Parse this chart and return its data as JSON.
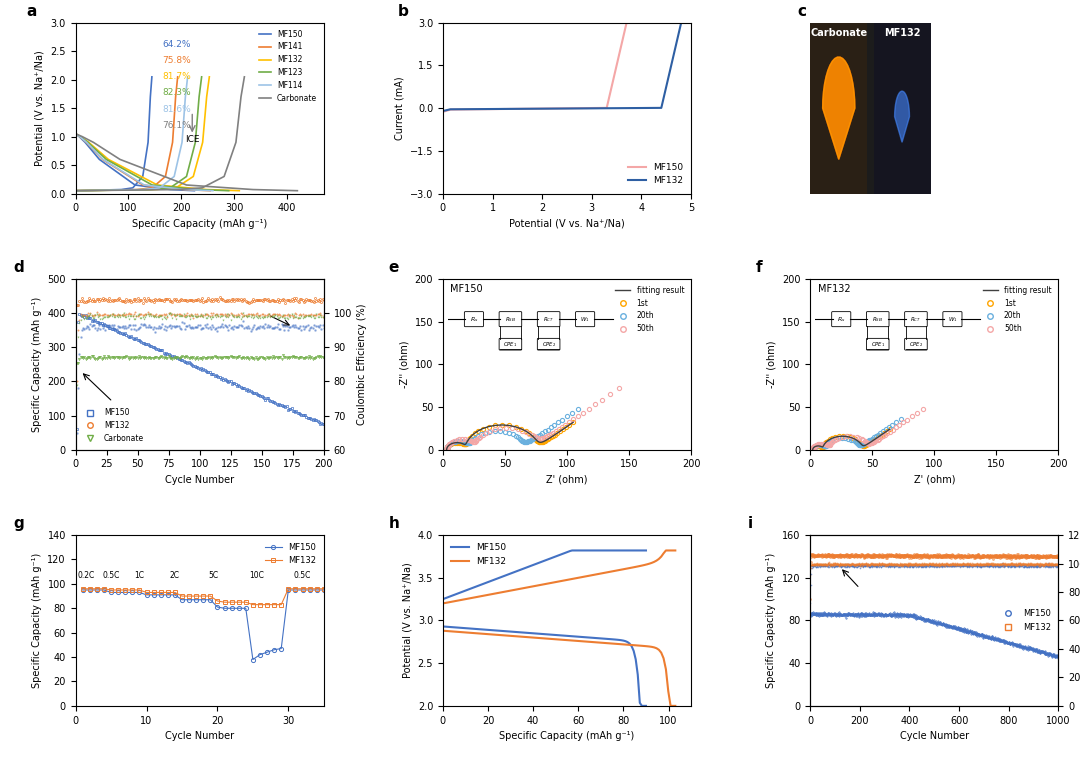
{
  "panel_a": {
    "ice_labels": [
      "64.2%",
      "75.8%",
      "81.7%",
      "82.3%",
      "81.6%",
      "76.1%"
    ],
    "ice_colors": [
      "#4472c4",
      "#ed7d31",
      "#ffc000",
      "#70ad47",
      "#9dc3e6",
      "#808080"
    ],
    "legend_labels": [
      "MF150",
      "MF141",
      "MF132",
      "MF123",
      "MF114",
      "Carbonate"
    ],
    "legend_colors": [
      "#4472c4",
      "#ed7d31",
      "#ffc000",
      "#70ad47",
      "#9dc3e6",
      "#808080"
    ],
    "xlabel": "Specific Capacity (mAh g⁻¹)",
    "ylabel": "Potential (V vs. Na⁺/Na)",
    "xlim": [
      0,
      470
    ],
    "ylim": [
      0,
      3.0
    ],
    "curves": [
      {
        "cap": 225,
        "ice": 0.642,
        "color": "#4472c4"
      },
      {
        "cap": 255,
        "ice": 0.758,
        "color": "#ed7d31"
      },
      {
        "cap": 310,
        "ice": 0.817,
        "color": "#ffc000"
      },
      {
        "cap": 290,
        "ice": 0.823,
        "color": "#70ad47"
      },
      {
        "cap": 260,
        "ice": 0.816,
        "color": "#9dc3e6"
      },
      {
        "cap": 420,
        "ice": 0.761,
        "color": "#808080"
      }
    ]
  },
  "panel_b": {
    "xlabel": "Potential (V vs. Na⁺/Na)",
    "ylabel": "Current (mA)",
    "xlim": [
      0,
      5
    ],
    "ylim": [
      -3.0,
      3.0
    ],
    "legend_labels": [
      "MF150",
      "MF132"
    ],
    "legend_colors": [
      "#f4a7a7",
      "#2e5fa3"
    ]
  },
  "panel_c": {
    "label_left": "Carbonate",
    "label_right": "MF132"
  },
  "panel_d": {
    "xlabel": "Cycle Number",
    "ylabel_left": "Specific Capacity (mAh g⁻¹)",
    "ylabel_right": "Coulombic Efficiency (%)",
    "xlim": [
      0,
      200
    ],
    "ylim_left": [
      0,
      500
    ],
    "ylim_right": [
      60,
      110
    ],
    "legend_labels": [
      "MF150",
      "MF132",
      "Carbonate"
    ],
    "legend_colors": [
      "#4472c4",
      "#ed7d31",
      "#70ad47"
    ]
  },
  "panel_e": {
    "xlabel": "Z' (ohm)",
    "ylabel": "-Z'' (ohm)",
    "xlim": [
      0,
      200
    ],
    "ylim": [
      0,
      200
    ],
    "title": "MF150",
    "legend_labels": [
      "fitting result",
      "1st",
      "20th",
      "50th"
    ],
    "legend_colors": [
      "#404040",
      "#ffa500",
      "#6ab0de",
      "#f4a7a7"
    ]
  },
  "panel_f": {
    "xlabel": "Z' (ohm)",
    "ylabel": "-Z'' (ohm)",
    "xlim": [
      0,
      200
    ],
    "ylim": [
      0,
      200
    ],
    "title": "MF132",
    "legend_labels": [
      "fitting result",
      "1st",
      "20th",
      "50th"
    ],
    "legend_colors": [
      "#404040",
      "#ffa500",
      "#6ab0de",
      "#f4a7a7"
    ]
  },
  "panel_g": {
    "xlabel": "Cycle Number",
    "ylabel": "Specific Capacity (mAh g⁻¹)",
    "xlim": [
      0,
      35
    ],
    "ylim": [
      0,
      140
    ],
    "legend_labels": [
      "MF150",
      "MF132"
    ],
    "legend_colors": [
      "#4472c4",
      "#ed7d31"
    ],
    "rate_labels": [
      "0.2C",
      "0.5C",
      "1C",
      "2C",
      "5C",
      "10C",
      "0.5C"
    ],
    "rate_x": [
      1.5,
      5,
      9,
      14,
      19.5,
      25.5,
      32
    ]
  },
  "panel_h": {
    "xlabel": "Specific Capacity (mAh g⁻¹)",
    "ylabel": "Potential (V vs. Na⁺/Na)",
    "xlim": [
      0,
      110
    ],
    "ylim": [
      2.0,
      4.0
    ],
    "legend_labels": [
      "MF150",
      "MF132"
    ],
    "legend_colors": [
      "#4472c4",
      "#ed7d31"
    ]
  },
  "panel_i": {
    "xlabel": "Cycle Number",
    "ylabel_left": "Specific Capacity (mAh g⁻¹)",
    "ylabel_right": "Coulombic Efficiency (%)",
    "xlim": [
      0,
      1000
    ],
    "ylim_left": [
      0,
      160
    ],
    "ylim_right": [
      0,
      120
    ],
    "legend_labels": [
      "MF150",
      "MF132"
    ],
    "legend_colors": [
      "#4472c4",
      "#ed7d31"
    ]
  }
}
